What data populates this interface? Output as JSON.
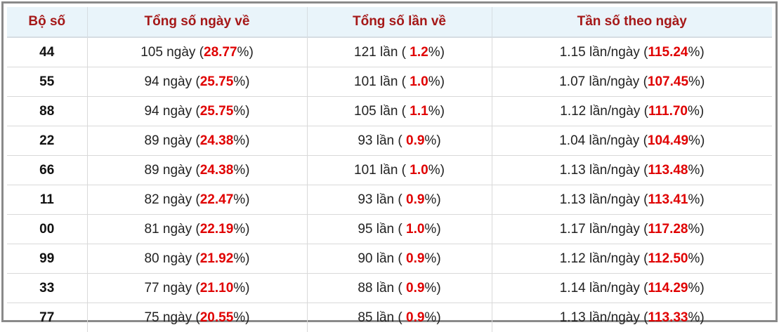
{
  "table": {
    "header": [
      "Bộ số",
      "Tổng số ngày về",
      "Tổng số lần về",
      "Tần số theo ngày"
    ],
    "rows": [
      [
        "44",
        [
          "105 ngày (",
          "28.77",
          "%)"
        ],
        [
          "121 lần ( ",
          "1.2",
          "%)"
        ],
        [
          "1.15 lần/ngày (",
          "115.24",
          "%)"
        ]
      ],
      [
        "55",
        [
          "94 ngày (",
          "25.75",
          "%)"
        ],
        [
          "101 lần ( ",
          "1.0",
          "%)"
        ],
        [
          "1.07 lần/ngày (",
          "107.45",
          "%)"
        ]
      ],
      [
        "88",
        [
          "94 ngày (",
          "25.75",
          "%)"
        ],
        [
          "105 lần ( ",
          "1.1",
          "%)"
        ],
        [
          "1.12 lần/ngày (",
          "111.70",
          "%)"
        ]
      ],
      [
        "22",
        [
          "89 ngày (",
          "24.38",
          "%)"
        ],
        [
          "93 lần ( ",
          "0.9",
          "%)"
        ],
        [
          "1.04 lần/ngày (",
          "104.49",
          "%)"
        ]
      ],
      [
        "66",
        [
          "89 ngày (",
          "24.38",
          "%)"
        ],
        [
          "101 lần ( ",
          "1.0",
          "%)"
        ],
        [
          "1.13 lần/ngày (",
          "113.48",
          "%)"
        ]
      ],
      [
        "11",
        [
          "82 ngày (",
          "22.47",
          "%)"
        ],
        [
          "93 lần ( ",
          "0.9",
          "%)"
        ],
        [
          "1.13 lần/ngày (",
          "113.41",
          "%)"
        ]
      ],
      [
        "00",
        [
          "81 ngày (",
          "22.19",
          "%)"
        ],
        [
          "95 lần ( ",
          "1.0",
          "%)"
        ],
        [
          "1.17 lần/ngày (",
          "117.28",
          "%)"
        ]
      ],
      [
        "99",
        [
          "80 ngày (",
          "21.92",
          "%)"
        ],
        [
          "90 lần ( ",
          "0.9",
          "%)"
        ],
        [
          "1.12 lần/ngày (",
          "112.50",
          "%)"
        ]
      ],
      [
        "33",
        [
          "77 ngày (",
          "21.10",
          "%)"
        ],
        [
          "88 lần ( ",
          "0.9",
          "%)"
        ],
        [
          "1.14 lần/ngày (",
          "114.29",
          "%)"
        ]
      ],
      [
        "77",
        [
          "75 ngày (",
          "20.55",
          "%)"
        ],
        [
          "85 lần ( ",
          "0.9",
          "%)"
        ],
        [
          "1.13 lần/ngày (",
          "113.33",
          "%)"
        ]
      ]
    ]
  }
}
